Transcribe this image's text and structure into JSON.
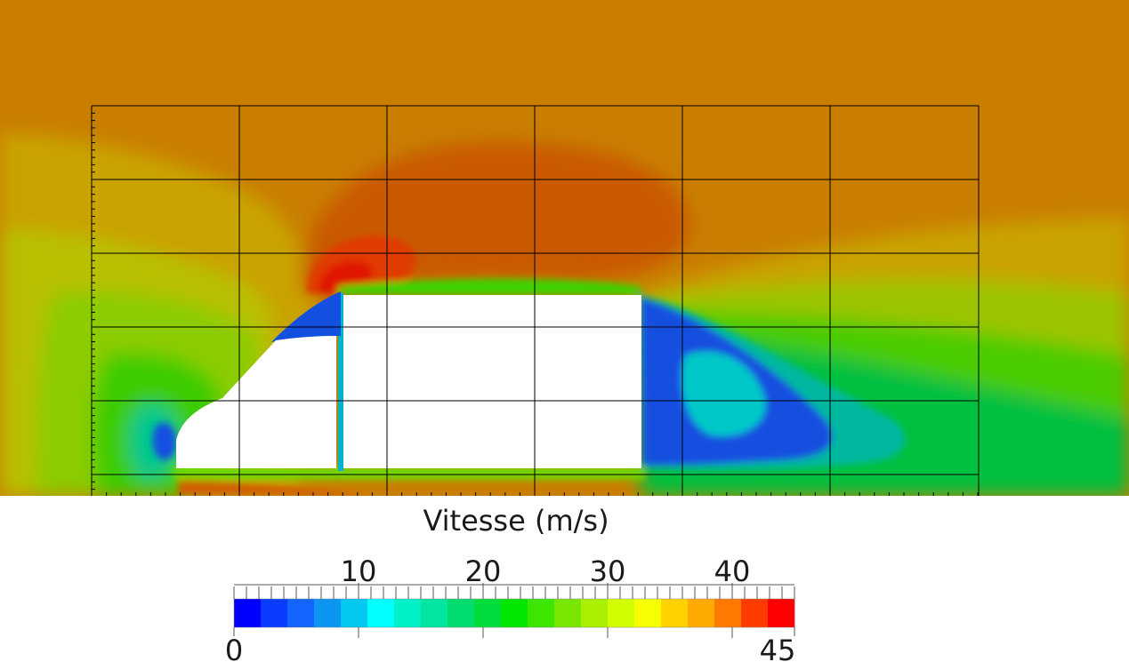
{
  "chart_data": {
    "type": "heatmap",
    "title": "Vitesse (m/s)",
    "colorbar": {
      "min": 0,
      "max": 45,
      "levels": 21,
      "tick_values": [
        10,
        20,
        30,
        40
      ],
      "tick_labels": [
        "10",
        "20",
        "30",
        "40"
      ],
      "min_label": "0",
      "max_label": "45",
      "colors": [
        "#0000ff",
        "#0a3cff",
        "#1464ff",
        "#0c96f0",
        "#00c8f0",
        "#00ffff",
        "#00f0c8",
        "#00e6a0",
        "#00dc6e",
        "#00dc3c",
        "#00e600",
        "#3ce600",
        "#78e600",
        "#aaf000",
        "#d2ff00",
        "#f5ff00",
        "#ffd200",
        "#ffaa00",
        "#ff7800",
        "#ff3c00",
        "#ff0000"
      ]
    },
    "grid": true,
    "field_colors": {
      "freestream": "#c97e00",
      "roof_overspeed": "#c95a00",
      "peak": "#e01800",
      "wake_low": "#1450e0",
      "wake_core": "#00c8c8",
      "solid_body": "#ffffff"
    }
  }
}
